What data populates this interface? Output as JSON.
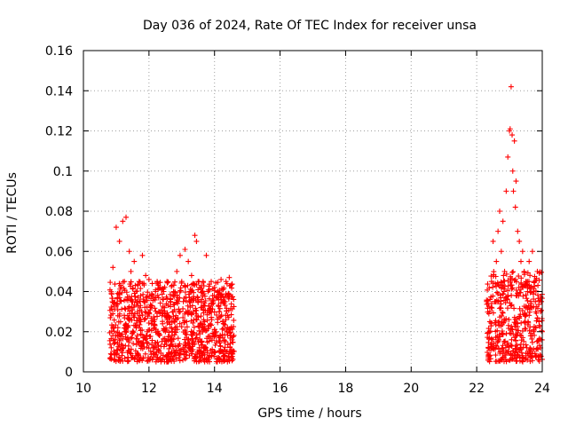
{
  "chart_data": {
    "type": "scatter",
    "title": "Day 036 of 2024, Rate Of TEC Index for receiver unsa",
    "xlabel": "GPS time / hours",
    "ylabel": "ROTI / TECUs",
    "xlim": [
      10,
      24
    ],
    "ylim": [
      0,
      0.16
    ],
    "xticks": [
      10,
      12,
      14,
      16,
      18,
      20,
      22,
      24
    ],
    "xtick_labels": [
      "10",
      "12",
      "14",
      "16",
      "18",
      "20",
      "22",
      "24"
    ],
    "yticks": [
      0,
      0.02,
      0.04,
      0.06,
      0.08,
      0.1,
      0.12,
      0.14,
      0.16
    ],
    "ytick_labels": [
      "0",
      "0.02",
      "0.04",
      "0.06",
      "0.08",
      "0.1",
      "0.12",
      "0.14",
      "0.16"
    ],
    "grid": true,
    "marker": "+",
    "color": "#ff0000",
    "series": [
      {
        "name": "ROTI",
        "points": [
          [
            10.85,
            0.012
          ],
          [
            10.9,
            0.052
          ],
          [
            10.95,
            0.031
          ],
          [
            11.0,
            0.072
          ],
          [
            11.05,
            0.022
          ],
          [
            11.1,
            0.065
          ],
          [
            11.15,
            0.018
          ],
          [
            11.2,
            0.075
          ],
          [
            11.25,
            0.045
          ],
          [
            11.3,
            0.077
          ],
          [
            11.35,
            0.028
          ],
          [
            11.4,
            0.06
          ],
          [
            11.45,
            0.05
          ],
          [
            11.5,
            0.035
          ],
          [
            11.55,
            0.055
          ],
          [
            11.6,
            0.04
          ],
          [
            11.65,
            0.03
          ],
          [
            11.7,
            0.045
          ],
          [
            11.75,
            0.025
          ],
          [
            11.8,
            0.058
          ],
          [
            11.85,
            0.035
          ],
          [
            11.9,
            0.048
          ],
          [
            11.95,
            0.02
          ],
          [
            12.0,
            0.046
          ],
          [
            12.05,
            0.032
          ],
          [
            12.1,
            0.044
          ],
          [
            12.15,
            0.025
          ],
          [
            12.2,
            0.04
          ],
          [
            12.25,
            0.045
          ],
          [
            12.3,
            0.03
          ],
          [
            12.35,
            0.042
          ],
          [
            12.4,
            0.028
          ],
          [
            12.45,
            0.04
          ],
          [
            12.5,
            0.02
          ],
          [
            12.55,
            0.045
          ],
          [
            12.6,
            0.025
          ],
          [
            12.65,
            0.035
          ],
          [
            12.7,
            0.015
          ],
          [
            12.75,
            0.04
          ],
          [
            12.8,
            0.022
          ],
          [
            12.85,
            0.05
          ],
          [
            12.9,
            0.03
          ],
          [
            12.95,
            0.058
          ],
          [
            13.0,
            0.045
          ],
          [
            13.05,
            0.035
          ],
          [
            13.1,
            0.061
          ],
          [
            13.15,
            0.025
          ],
          [
            13.2,
            0.055
          ],
          [
            13.25,
            0.04
          ],
          [
            13.3,
            0.048
          ],
          [
            13.35,
            0.03
          ],
          [
            13.4,
            0.068
          ],
          [
            13.45,
            0.065
          ],
          [
            13.5,
            0.045
          ],
          [
            13.55,
            0.042
          ],
          [
            13.6,
            0.035
          ],
          [
            13.65,
            0.045
          ],
          [
            13.7,
            0.025
          ],
          [
            13.75,
            0.058
          ],
          [
            13.8,
            0.04
          ],
          [
            13.85,
            0.03
          ],
          [
            13.9,
            0.045
          ],
          [
            13.95,
            0.035
          ],
          [
            14.0,
            0.042
          ],
          [
            14.05,
            0.02
          ],
          [
            14.1,
            0.04
          ],
          [
            14.15,
            0.03
          ],
          [
            14.2,
            0.046
          ],
          [
            14.25,
            0.025
          ],
          [
            14.3,
            0.035
          ],
          [
            14.35,
            0.045
          ],
          [
            14.4,
            0.028
          ],
          [
            14.45,
            0.047
          ],
          [
            14.5,
            0.018
          ],
          [
            14.55,
            0.01
          ],
          [
            22.4,
            0.025
          ],
          [
            22.45,
            0.045
          ],
          [
            22.5,
            0.065
          ],
          [
            22.55,
            0.035
          ],
          [
            22.6,
            0.055
          ],
          [
            22.65,
            0.07
          ],
          [
            22.7,
            0.08
          ],
          [
            22.75,
            0.06
          ],
          [
            22.8,
            0.075
          ],
          [
            22.85,
            0.05
          ],
          [
            22.9,
            0.09
          ],
          [
            22.95,
            0.107
          ],
          [
            23.0,
            0.12
          ],
          [
            23.02,
            0.121
          ],
          [
            23.05,
            0.142
          ],
          [
            23.08,
            0.118
          ],
          [
            23.1,
            0.1
          ],
          [
            23.12,
            0.09
          ],
          [
            23.15,
            0.115
          ],
          [
            23.18,
            0.082
          ],
          [
            23.2,
            0.095
          ],
          [
            23.25,
            0.07
          ],
          [
            23.3,
            0.065
          ],
          [
            23.35,
            0.055
          ],
          [
            23.4,
            0.06
          ],
          [
            23.45,
            0.05
          ],
          [
            23.5,
            0.045
          ],
          [
            23.55,
            0.04
          ],
          [
            23.6,
            0.055
          ],
          [
            23.65,
            0.035
          ],
          [
            23.7,
            0.06
          ],
          [
            23.75,
            0.04
          ],
          [
            23.8,
            0.03
          ],
          [
            23.85,
            0.05
          ],
          [
            23.9,
            0.025
          ],
          [
            23.95,
            0.03
          ],
          [
            24.0,
            0.02
          ]
        ]
      }
    ],
    "bands": [
      {
        "x_start": 10.8,
        "x_end": 14.6,
        "y_low": 0.005,
        "y_high": 0.045
      },
      {
        "x_start": 22.3,
        "x_end": 24.0,
        "y_low": 0.005,
        "y_high": 0.05
      }
    ]
  }
}
